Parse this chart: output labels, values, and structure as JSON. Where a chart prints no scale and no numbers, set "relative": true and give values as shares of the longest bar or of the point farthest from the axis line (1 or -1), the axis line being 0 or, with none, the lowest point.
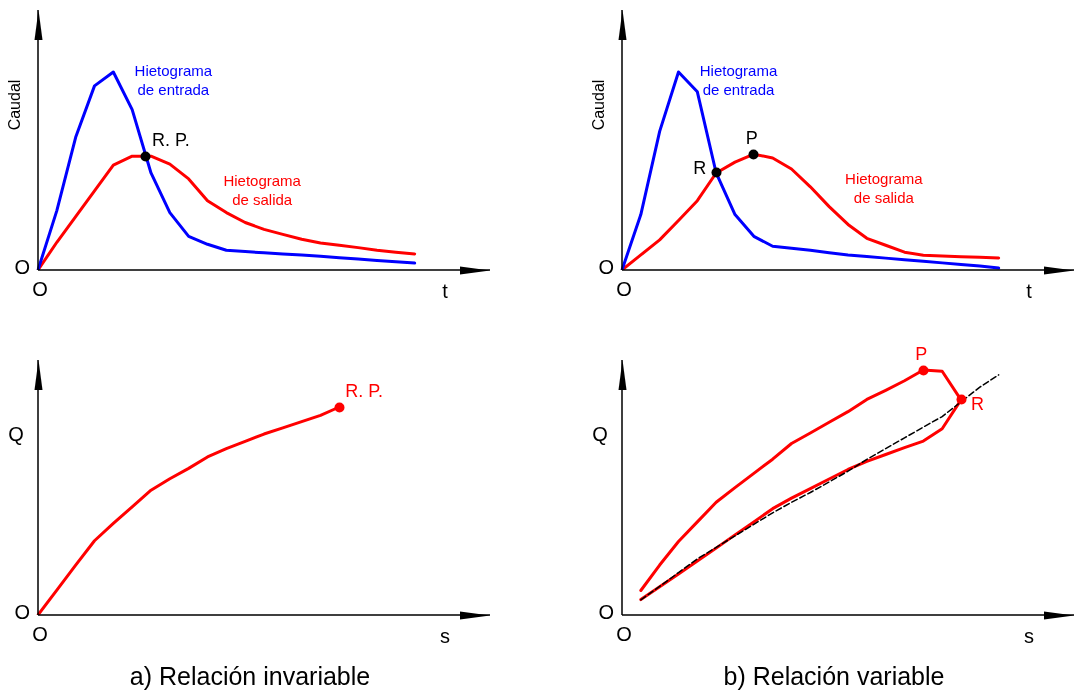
{
  "chart_data": [
    {
      "type": "line",
      "relative": true,
      "ylabel": "Caudal",
      "xlabel": "t",
      "tick_labels": false,
      "marker": "none",
      "annotations": [
        "O",
        "O",
        "R. P."
      ],
      "categories": [
        null,
        null,
        null,
        null,
        null,
        null,
        null,
        null,
        null,
        null,
        null,
        null,
        null,
        null,
        null,
        null,
        null,
        null,
        null,
        null,
        null,
        null,
        null,
        null,
        null
      ],
      "series": [
        {
          "name": "Hietograma\nde entrada",
          "color": "#0000ff",
          "values": [
            0,
            0.3,
            0.67,
            0.93,
            1,
            0.81,
            0.49,
            0.29,
            0.17,
            0.13,
            0.1,
            0.093,
            0.087,
            0.081,
            0.076,
            0.069,
            0.062,
            0.055,
            0.048,
            0.042,
            0.035,
            null,
            null,
            null,
            null
          ]
        },
        {
          "name": "Hietograma\nde salida",
          "color": "#ff0000",
          "values": [
            0,
            0.14,
            0.27,
            0.4,
            0.53,
            0.575,
            0.575,
            0.535,
            0.46,
            0.35,
            0.29,
            0.24,
            0.205,
            0.18,
            0.155,
            0.136,
            0.125,
            0.113,
            0.1,
            0.09,
            0.081,
            null,
            null,
            null,
            null
          ]
        }
      ]
    },
    {
      "type": "line",
      "relative": true,
      "ylabel": "Caudal",
      "xlabel": "t",
      "tick_labels": false,
      "marker": "none",
      "annotations": [
        "O",
        "O",
        "R",
        "P"
      ],
      "categories": [
        null,
        null,
        null,
        null,
        null,
        null,
        null,
        null,
        null,
        null,
        null,
        null,
        null,
        null,
        null,
        null,
        null,
        null,
        null,
        null,
        null,
        null,
        null,
        null,
        null
      ],
      "series": [
        {
          "name": "Hietograma\nde entrada",
          "color": "#0000ff",
          "values": [
            0,
            0.28,
            0.7,
            1,
            0.9,
            0.49,
            0.28,
            0.17,
            0.12,
            0.11,
            0.1,
            0.087,
            0.076,
            0.068,
            0.06,
            0.052,
            0.044,
            0.036,
            0.028,
            0.02,
            0.01,
            null,
            null,
            null,
            null
          ]
        },
        {
          "name": "Hietograma\nde salida",
          "color": "#ff0000",
          "values": [
            0,
            0.076,
            0.152,
            0.25,
            0.35,
            0.49,
            0.545,
            0.585,
            0.566,
            0.51,
            0.42,
            0.32,
            0.23,
            0.16,
            0.125,
            0.09,
            0.075,
            0.071,
            0.067,
            0.064,
            0.061,
            null,
            null,
            null,
            null
          ]
        }
      ]
    },
    {
      "type": "line",
      "relative": true,
      "ylabel": "Q",
      "xlabel": "s",
      "tick_labels": false,
      "marker": "none",
      "annotations": [
        "O",
        "O",
        "R. P.",
        "a) Relación invariable"
      ],
      "categories": [
        null,
        null,
        null,
        null,
        null,
        null,
        null,
        null,
        null,
        null,
        null,
        null,
        null,
        null,
        null,
        null,
        null,
        null,
        null,
        null,
        null,
        null,
        null,
        null,
        null
      ],
      "series": [
        {
          "color": "#ff0000",
          "values": [
            0,
            0.12,
            0.24,
            0.357,
            0.44,
            0.52,
            0.6,
            0.655,
            0.705,
            0.76,
            0.8,
            0.835,
            0.87,
            0.9,
            0.93,
            0.96,
            1,
            null,
            null,
            null,
            null,
            null,
            null,
            null,
            null
          ]
        }
      ]
    },
    {
      "type": "line",
      "relative": true,
      "ylabel": "Q",
      "xlabel": "s",
      "tick_labels": false,
      "marker": "none",
      "annotations": [
        "O",
        "O",
        "P",
        "R",
        "b) Relación variable"
      ],
      "categories": [
        null,
        null,
        null,
        null,
        null,
        null,
        null,
        null,
        null,
        null,
        null,
        null,
        null,
        null,
        null,
        null,
        null,
        null,
        null,
        null,
        null,
        null,
        null,
        null,
        null
      ],
      "series": [
        {
          "color": "#ff0000",
          "values": [
            null,
            0.063,
            0.115,
            0.167,
            0.22,
            0.273,
            0.327,
            0.38,
            0.434,
            0.477,
            0.516,
            0.555,
            0.594,
            0.627,
            0.655,
            0.683,
            0.71,
            0.76,
            0.878,
            null,
            null,
            null,
            null,
            null,
            null
          ]
        },
        {
          "color": "#ff0000",
          "values": [
            null,
            0.1,
            0.204,
            0.3,
            0.38,
            0.46,
            0.52,
            0.578,
            0.636,
            0.7,
            0.743,
            0.787,
            0.83,
            0.88,
            0.917,
            0.956,
            1,
            0.995,
            0.878,
            null,
            null,
            null,
            null,
            null,
            null
          ]
        },
        {
          "color": "#000000",
          "line_style": "dashed",
          "values": [
            null,
            0.062,
            0.117,
            0.173,
            0.229,
            0.276,
            0.323,
            0.37,
            0.417,
            0.46,
            0.5,
            0.543,
            0.587,
            0.635,
            0.679,
            0.723,
            0.767,
            0.81,
            0.87,
            0.93,
            0.98,
            null,
            null,
            null,
            null
          ]
        }
      ]
    }
  ]
}
